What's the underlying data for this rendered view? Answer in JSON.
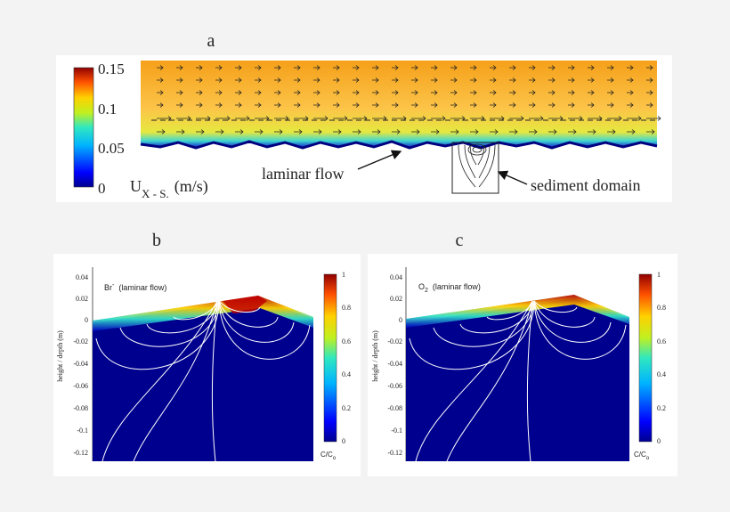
{
  "panels": {
    "a": {
      "label": "a",
      "colorbar_ticks": [
        "0.15",
        "0.1",
        "0.05",
        "0"
      ],
      "units_main": "U",
      "units_sub": "X - S.",
      "units_unit": "(m/s)",
      "annotation_left": "laminar flow",
      "annotation_right": "sediment domain"
    },
    "b": {
      "label": "b",
      "title_species": "Br",
      "title_superscript": "-",
      "title_condition": "(laminar flow)",
      "y_axis_label": "height / depth (m)",
      "y_ticks": [
        "0.04",
        "0.02",
        "0",
        "-0.02",
        "-0.04",
        "-0.06",
        "-0.08",
        "-0.1",
        "-0.12"
      ],
      "colorbar_ticks": [
        "1",
        "0.8",
        "0.6",
        "0.4",
        "0.2",
        "0"
      ],
      "colorbar_label": "C/C",
      "colorbar_label_sub": "o"
    },
    "c": {
      "label": "c",
      "title_species": "O",
      "title_subscript": "2",
      "title_condition": "(laminar flow)",
      "y_axis_label": "height / depth (m)",
      "y_ticks": [
        "0.04",
        "0.02",
        "0",
        "-0.02",
        "-0.04",
        "-0.06",
        "-0.08",
        "-0.1",
        "-0.12"
      ],
      "colorbar_ticks": [
        "1",
        "0.8",
        "0.6",
        "0.4",
        "0.2",
        "0"
      ],
      "colorbar_label": "C/C",
      "colorbar_label_sub": "o"
    }
  },
  "colors": {
    "deep_blue": "#0a0a8c",
    "flow_top": "#f6a21b",
    "flow_mid": "#fcc64a",
    "colormap": [
      "#00008f",
      "#0000ff",
      "#00a0ff",
      "#20e0d0",
      "#b0f030",
      "#ffd800",
      "#ff7000",
      "#d00000",
      "#800000"
    ]
  }
}
